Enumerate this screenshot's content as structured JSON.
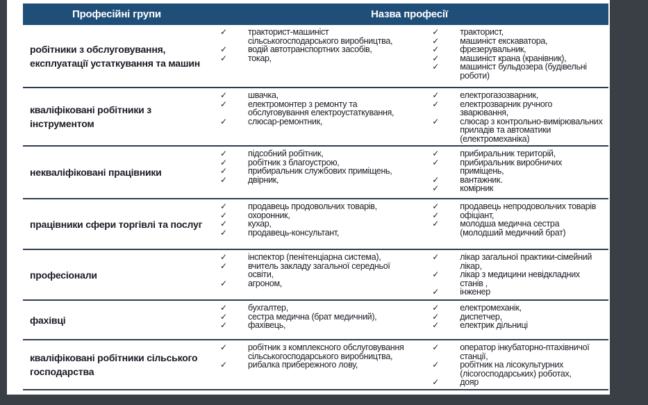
{
  "table": {
    "headers": {
      "groups": "Професійні групи",
      "professions": "Назва професії"
    },
    "rows": [
      {
        "group": "робітники з обслуговування, експлуатації устаткування та машин",
        "col1": [
          "тракторист-машиніст сільськогосподарського виробництва,",
          "водій автотранспортних засобів,",
          "токар,"
        ],
        "col2": [
          "тракторист,",
          "машиніст екскаватора,",
          "фрезерувальник,",
          "машиніст крана (кранівник),",
          "машиніст бульдозера (будівельні роботи)"
        ]
      },
      {
        "group": "кваліфіковані робітники з інструментом",
        "col1": [
          "швачка,",
          "електромонтер з ремонту та обслуговування електроустаткування,",
          "слюсар-ремонтник,"
        ],
        "col2": [
          "електрогазозварник,",
          "електрозварник ручного зварювання,",
          "слюсар з контрольно-вимірювальних приладів та автоматики (електромеханіка)"
        ]
      },
      {
        "group": "некваліфіковані працівники",
        "col1": [
          "підсобний робітник,",
          "робітник з благоустрою,",
          "прибиральник службових приміщень,",
          "двірник,"
        ],
        "col2": [
          "прибиральник територій,",
          "прибиральник виробничих приміщень,",
          "вантажник.",
          "комірник"
        ]
      },
      {
        "group": "працівники сфери торгівлі та послуг",
        "col1": [
          "продавець продовольчих товарів,",
          "охоронник,",
          "кухар,",
          "продавець-консультант,"
        ],
        "col2": [
          "продавець непродовольчих товарів",
          "офіціант,",
          "молодша медична сестра (молодший медичний брат)"
        ]
      },
      {
        "group": "професіонали",
        "col1": [
          "інспектор (пенітенціарна система),",
          "вчитель закладу загальної середньої освіти,",
          "агроном,"
        ],
        "col2": [
          "лікар загальної практики-сімейний лікар,",
          "лікар з медицини невідкладних станів ,",
          "інженер"
        ]
      },
      {
        "group": "фахівці",
        "col1": [
          "бухгалтер,",
          "сестра медична (брат медичний),",
          "фахівець,"
        ],
        "col2": [
          "електромеханік,",
          "диспетчер,",
          "електрик дільниці"
        ]
      },
      {
        "group": "кваліфіковані робітники сільського господарства",
        "col1": [
          "робітник з комплексного обслуговування сільськогосподарського виробництва,",
          "рибалка прибережного лову,"
        ],
        "col2": [
          "оператор інкубаторно-птахівничої станції,",
          "робітник на лісокультурних (лісогосподарських) роботах,",
          "дояр"
        ]
      }
    ]
  },
  "icons": {
    "check": "✓"
  },
  "colors": {
    "canvas_bg": "#3a3e45",
    "slide_bg": "#ffffff",
    "header_bg": "#1f4e79",
    "header_text": "#ffffff",
    "row_border": "#2e3b4e",
    "text": "#1a1a24"
  }
}
